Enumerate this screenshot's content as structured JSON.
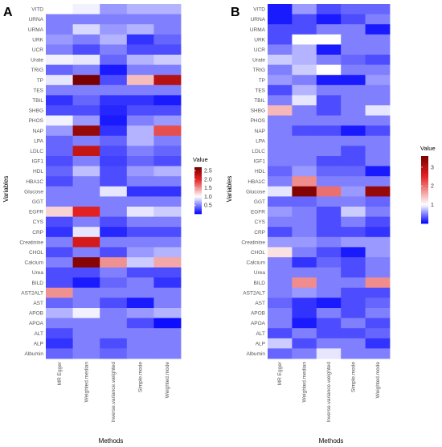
{
  "chart_data": [
    {
      "type": "heatmap",
      "panel_label": "A",
      "xlabel": "Methods",
      "ylabel": "Variables",
      "x": [
        "MR Egger",
        "Weighted.median",
        "Inverse.variance.weighted",
        "Simple.mode",
        "Weighted.mode"
      ],
      "y": [
        "VITD",
        "URNA",
        "URMA",
        "URK",
        "UCR",
        "Urate",
        "TRIG",
        "TP",
        "TES",
        "TBIL",
        "SHBG",
        "PHOS",
        "NAP",
        "LPA",
        "LDLC",
        "IGF1",
        "HDL",
        "HBA1C",
        "Glucose",
        "GGT",
        "EGFR",
        "CYS",
        "CRP",
        "Creatinine",
        "CHOL",
        "Calcium",
        "Urea",
        "BILD",
        "AST2ALT",
        "AST",
        "APOB",
        "APOA",
        "ALT",
        "ALP",
        "Albumin"
      ],
      "values": [
        [
          1.0,
          0.95,
          0.6,
          0.7,
          0.7
        ],
        [
          0.5,
          0.5,
          0.5,
          0.5,
          0.5
        ],
        [
          0.5,
          0.85,
          0.6,
          0.7,
          0.5
        ],
        [
          0.6,
          0.5,
          0.7,
          0.2,
          0.4
        ],
        [
          0.5,
          0.3,
          0.5,
          0.3,
          0.3
        ],
        [
          0.95,
          0.9,
          0.4,
          0.7,
          0.8
        ],
        [
          0.4,
          0.5,
          0.1,
          0.5,
          0.5
        ],
        [
          0.9,
          2.7,
          0.3,
          1.3,
          2.3
        ],
        [
          0.5,
          0.5,
          0.5,
          0.5,
          0.5
        ],
        [
          0.2,
          0.4,
          0.2,
          0.2,
          0.1
        ],
        [
          0.3,
          0.3,
          0.15,
          0.3,
          0.3
        ],
        [
          0.95,
          0.6,
          0.1,
          0.5,
          0.6
        ],
        [
          0.6,
          2.5,
          0.2,
          0.7,
          1.8
        ],
        [
          0.4,
          0.5,
          0.4,
          0.7,
          0.5
        ],
        [
          0.4,
          2.2,
          0.3,
          0.5,
          0.4
        ],
        [
          0.3,
          0.5,
          0.25,
          0.4,
          0.3
        ],
        [
          0.4,
          0.75,
          0.3,
          0.6,
          0.7
        ],
        [
          0.3,
          0.5,
          0.3,
          0.5,
          0.5
        ],
        [
          0.5,
          0.5,
          0.9,
          0.2,
          0.2
        ],
        [
          0.5,
          0.5,
          0.5,
          0.5,
          0.5
        ],
        [
          1.2,
          2.0,
          0.5,
          0.9,
          0.8
        ],
        [
          0.3,
          0.5,
          0.3,
          0.5,
          0.5
        ],
        [
          0.2,
          0.9,
          0.15,
          0.3,
          0.3
        ],
        [
          0.5,
          2.1,
          0.5,
          0.5,
          0.5
        ],
        [
          0.3,
          0.5,
          0.3,
          0.6,
          0.7
        ],
        [
          0.5,
          2.6,
          1.5,
          0.8,
          1.4
        ],
        [
          0.3,
          0.3,
          0.5,
          0.3,
          0.3
        ],
        [
          0.3,
          0.1,
          0.4,
          0.5,
          0.2
        ],
        [
          1.5,
          0.5,
          0.5,
          0.5,
          0.5
        ],
        [
          0.4,
          0.5,
          0.3,
          0.1,
          0.5
        ],
        [
          0.7,
          0.95,
          0.5,
          0.6,
          0.7
        ],
        [
          0.5,
          0.5,
          0.5,
          0.3,
          0.05
        ],
        [
          0.3,
          0.5,
          0.5,
          0.5,
          0.5
        ],
        [
          0.2,
          0.5,
          0.3,
          0.5,
          0.5
        ],
        [
          0.4,
          0.5,
          0.4,
          0.5,
          0.5
        ]
      ],
      "colorbar": {
        "title": "Value",
        "ticks": [
          0.5,
          1.0,
          1.5,
          2.0,
          2.5
        ],
        "tick_labels": [
          "0.5",
          "1.0",
          "1.5",
          "2.0",
          "2.5"
        ],
        "min": 0,
        "max": 2.7,
        "mid": 1
      }
    },
    {
      "type": "heatmap",
      "panel_label": "B",
      "xlabel": "Methods",
      "ylabel": "Variables",
      "x": [
        "MR Egger",
        "Weighted.median",
        "Inverse.variance.weighted",
        "Simple.mode",
        "Weighted.mode"
      ],
      "y": [
        "VITD",
        "URNA",
        "URMA",
        "URK",
        "UCR",
        "Urate",
        "TRIG",
        "TP",
        "TES",
        "TBIL",
        "SHBG",
        "PHOS",
        "NAP",
        "LPA",
        "LDLC",
        "IGF1",
        "HDL",
        "HBA1C",
        "Glucose",
        "GGT",
        "EGFR",
        "CYS",
        "CRP",
        "Creatinine",
        "CHOL",
        "Calcium",
        "Urea",
        "BILD",
        "AST2ALT",
        "AST",
        "APOB",
        "APOA",
        "ALT",
        "ALP",
        "Albumin"
      ],
      "values": [
        [
          0.1,
          0.6,
          0.3,
          0.4,
          0.4
        ],
        [
          0.1,
          0.3,
          0.1,
          0.3,
          0.5
        ],
        [
          0.3,
          0.3,
          0.5,
          0.5,
          0.1
        ],
        [
          0.3,
          1.0,
          1.0,
          0.5,
          0.5
        ],
        [
          0.5,
          0.7,
          0.1,
          0.5,
          0.5
        ],
        [
          0.8,
          0.7,
          0.5,
          0.4,
          0.3
        ],
        [
          0.5,
          0.8,
          1.0,
          0.5,
          0.5
        ],
        [
          0.6,
          0.5,
          0.1,
          0.1,
          0.6
        ],
        [
          0.3,
          0.7,
          0.5,
          0.5,
          0.5
        ],
        [
          0.5,
          0.9,
          0.3,
          0.5,
          0.5
        ],
        [
          1.5,
          0.5,
          0.3,
          0.5,
          0.9
        ],
        [
          0.5,
          0.5,
          0.5,
          0.5,
          0.5
        ],
        [
          0.5,
          0.3,
          0.3,
          0.1,
          0.3
        ],
        [
          0.5,
          0.5,
          0.5,
          0.5,
          0.5
        ],
        [
          0.5,
          0.5,
          0.5,
          0.3,
          0.5
        ],
        [
          0.5,
          0.5,
          0.3,
          0.3,
          0.5
        ],
        [
          0.4,
          0.6,
          0.4,
          0.4,
          0.1
        ],
        [
          0.5,
          1.8,
          0.5,
          0.5,
          0.5
        ],
        [
          0.9,
          3.5,
          2.0,
          0.6,
          3.3
        ],
        [
          0.4,
          0.4,
          0.5,
          0.5,
          0.4
        ],
        [
          0.6,
          0.5,
          0.3,
          0.8,
          0.5
        ],
        [
          0.5,
          0.5,
          0.3,
          0.5,
          0.3
        ],
        [
          0.3,
          0.5,
          0.3,
          0.3,
          0.2
        ],
        [
          0.6,
          0.6,
          0.5,
          0.6,
          0.6
        ],
        [
          1.2,
          0.5,
          0.3,
          0.1,
          0.6
        ],
        [
          0.5,
          0.2,
          0.4,
          0.3,
          0.5
        ],
        [
          0.5,
          0.5,
          0.5,
          0.3,
          0.5
        ],
        [
          0.5,
          1.8,
          0.5,
          0.5,
          1.8
        ],
        [
          0.5,
          0.6,
          0.5,
          0.3,
          0.3
        ],
        [
          0.4,
          0.2,
          0.1,
          0.3,
          0.4
        ],
        [
          0.5,
          0.2,
          0.5,
          0.3,
          0.5
        ],
        [
          0.5,
          0.1,
          0.3,
          0.5,
          0.3
        ],
        [
          0.3,
          0.5,
          0.3,
          0.3,
          0.4
        ],
        [
          0.8,
          0.3,
          0.5,
          0.5,
          0.2
        ],
        [
          0.4,
          0.5,
          0.9,
          0.5,
          0.5
        ]
      ],
      "colorbar": {
        "title": "Value",
        "ticks": [
          1,
          2,
          3
        ],
        "tick_labels": [
          "1",
          "2",
          "3"
        ],
        "min": 0,
        "max": 3.6,
        "mid": 1
      }
    }
  ]
}
